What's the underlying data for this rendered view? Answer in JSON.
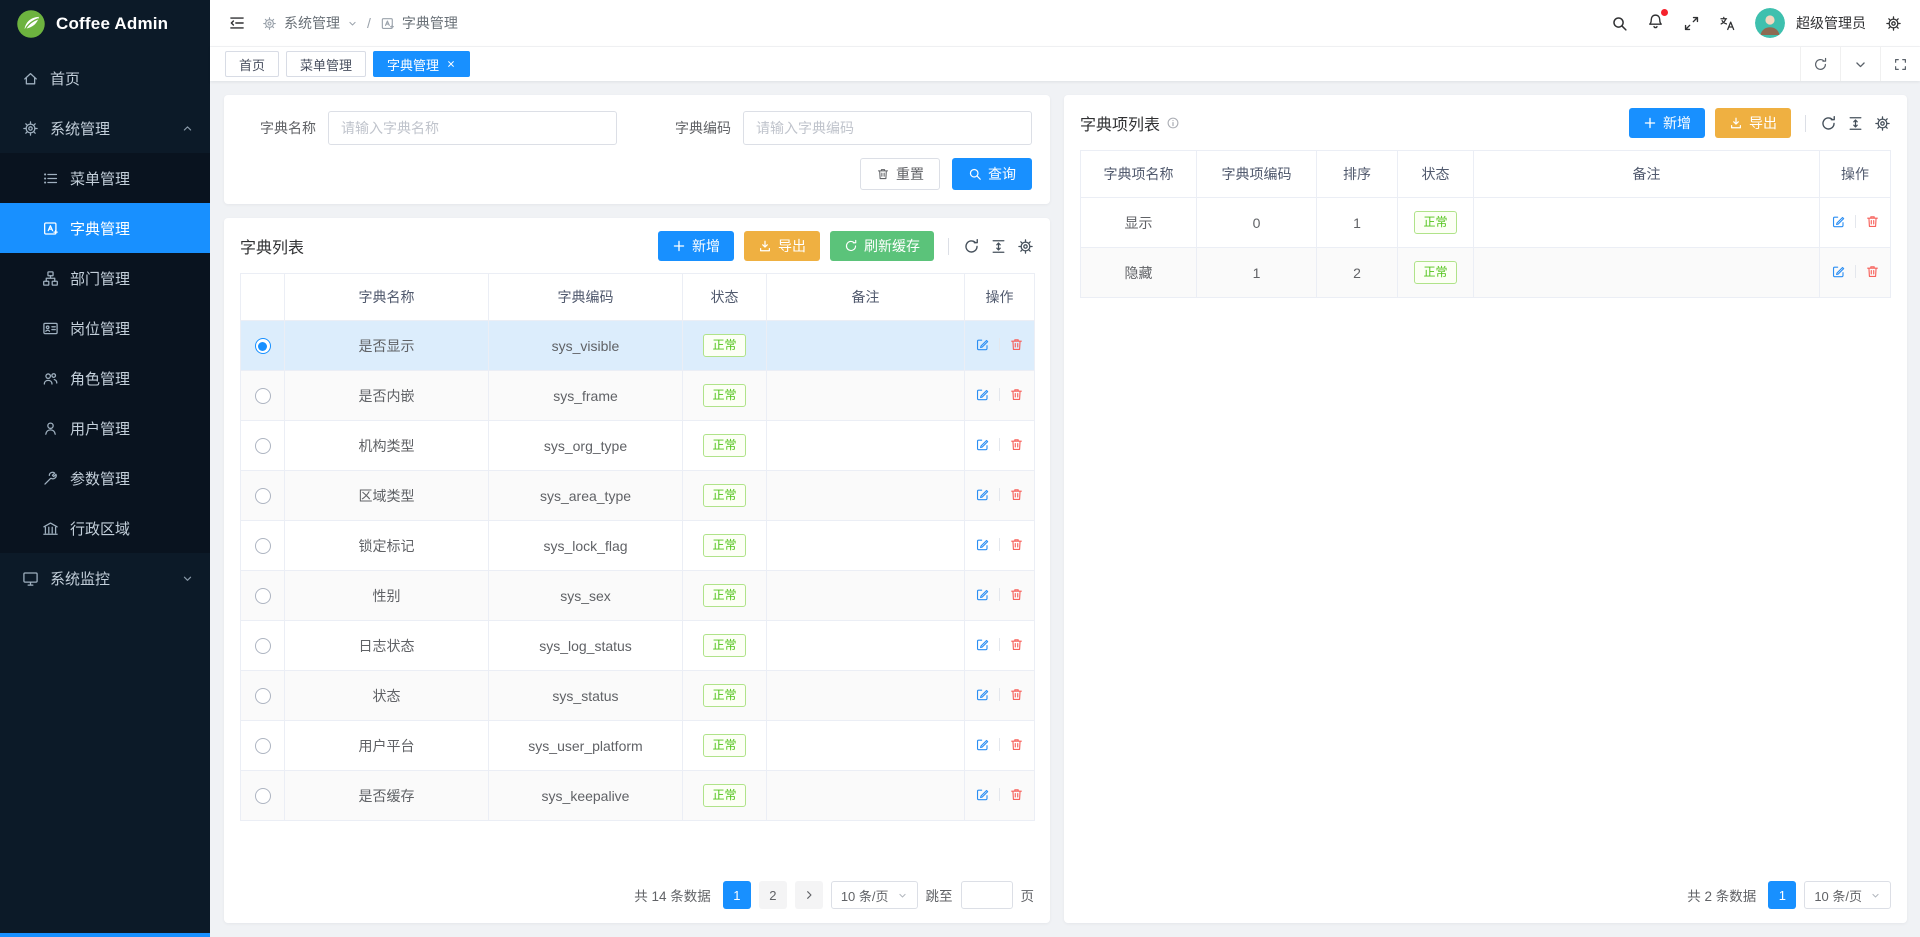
{
  "app": {
    "brand": "Coffee Admin"
  },
  "sidebar": {
    "items": [
      {
        "id": "home",
        "label": "首页",
        "icon": "home-icon",
        "level": "top"
      },
      {
        "id": "system",
        "label": "系统管理",
        "icon": "gear-icon",
        "level": "top",
        "group": true,
        "expanded": true
      },
      {
        "id": "menu",
        "label": "菜单管理",
        "icon": "list-icon",
        "level": "sub"
      },
      {
        "id": "dict",
        "label": "字典管理",
        "icon": "dictionary-icon",
        "level": "sub",
        "active": true
      },
      {
        "id": "dept",
        "label": "部门管理",
        "icon": "org-chart-icon",
        "level": "sub"
      },
      {
        "id": "post",
        "label": "岗位管理",
        "icon": "id-card-icon",
        "level": "sub"
      },
      {
        "id": "role",
        "label": "角色管理",
        "icon": "roles-icon",
        "level": "sub"
      },
      {
        "id": "user",
        "label": "用户管理",
        "icon": "user-icon",
        "level": "sub"
      },
      {
        "id": "param",
        "label": "参数管理",
        "icon": "wrench-icon",
        "level": "sub"
      },
      {
        "id": "region",
        "label": "行政区域",
        "icon": "bank-icon",
        "level": "sub"
      },
      {
        "id": "monitor",
        "label": "系统监控",
        "icon": "monitor-icon",
        "level": "top",
        "group": true,
        "expanded": false
      }
    ]
  },
  "topbar": {
    "breadcrumb": {
      "parent": "系统管理",
      "separator": "/",
      "current": "字典管理"
    },
    "user_name": "超级管理员"
  },
  "tabs": {
    "items": [
      {
        "id": "home",
        "label": "首页",
        "active": false,
        "closable": false
      },
      {
        "id": "menu",
        "label": "菜单管理",
        "active": false,
        "closable": false
      },
      {
        "id": "dict",
        "label": "字典管理",
        "active": true,
        "closable": true
      }
    ]
  },
  "search_form": {
    "fields": [
      {
        "label": "字典名称",
        "placeholder": "请输入字典名称",
        "value": ""
      },
      {
        "label": "字典编码",
        "placeholder": "请输入字典编码",
        "value": ""
      }
    ],
    "reset_label": "重置",
    "query_label": "查询"
  },
  "dict_list": {
    "title": "字典列表",
    "add_label": "新增",
    "export_label": "导出",
    "refresh_cache_label": "刷新缓存",
    "columns": [
      "字典名称",
      "字典编码",
      "状态",
      "备注",
      "操作"
    ],
    "rows": [
      {
        "name": "是否显示",
        "code": "sys_visible",
        "status": "正常",
        "remark": "",
        "selected": true
      },
      {
        "name": "是否内嵌",
        "code": "sys_frame",
        "status": "正常",
        "remark": ""
      },
      {
        "name": "机构类型",
        "code": "sys_org_type",
        "status": "正常",
        "remark": ""
      },
      {
        "name": "区域类型",
        "code": "sys_area_type",
        "status": "正常",
        "remark": ""
      },
      {
        "name": "锁定标记",
        "code": "sys_lock_flag",
        "status": "正常",
        "remark": ""
      },
      {
        "name": "性别",
        "code": "sys_sex",
        "status": "正常",
        "remark": ""
      },
      {
        "name": "日志状态",
        "code": "sys_log_status",
        "status": "正常",
        "remark": ""
      },
      {
        "name": "状态",
        "code": "sys_status",
        "status": "正常",
        "remark": ""
      },
      {
        "name": "用户平台",
        "code": "sys_user_platform",
        "status": "正常",
        "remark": ""
      },
      {
        "name": "是否缓存",
        "code": "sys_keepalive",
        "status": "正常",
        "remark": ""
      }
    ],
    "pagination": {
      "total": "共 14 条数据",
      "pages": [
        "1",
        "2"
      ],
      "active_page": "1",
      "has_next": true,
      "page_size": "10 条/页",
      "jump_label": "跳至",
      "jump_unit": "页",
      "jump_value": ""
    }
  },
  "dict_items": {
    "title": "字典项列表",
    "add_label": "新增",
    "export_label": "导出",
    "columns": [
      "字典项名称",
      "字典项编码",
      "排序",
      "状态",
      "备注",
      "操作"
    ],
    "rows": [
      {
        "name": "显示",
        "code": "0",
        "sort": "1",
        "status": "正常",
        "remark": ""
      },
      {
        "name": "隐藏",
        "code": "1",
        "sort": "2",
        "status": "正常",
        "remark": ""
      }
    ],
    "pagination": {
      "total": "共 2 条数据",
      "pages": [
        "1"
      ],
      "active_page": "1",
      "has_next": false,
      "page_size": "10 条/页"
    }
  },
  "colors": {
    "primary": "#1890ff",
    "export_amber": "#efb041",
    "refresh_green": "#5bc37a",
    "tag_success_text": "#52c41a",
    "edit_blue": "#2b8ef3",
    "delete_red": "#f7605a",
    "sidebar_bg": "#0c1a28",
    "submenu_bg": "#09131f",
    "selected_row_bg": "#dcedfc",
    "badge_red": "#f5222d",
    "logo_green": "#6db33f",
    "avatar_teal": "#3ec0ae"
  }
}
